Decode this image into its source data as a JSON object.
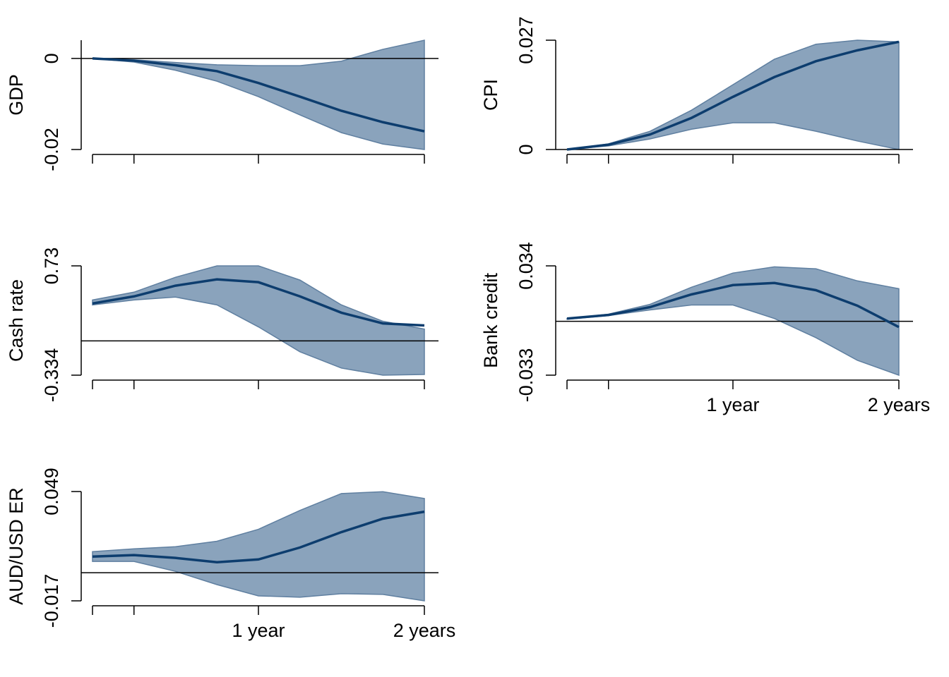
{
  "chart_data": [
    {
      "type": "line",
      "ylabel": "GDP",
      "x": [
        0,
        1,
        2,
        3,
        4,
        5,
        6,
        7,
        8
      ],
      "xlim": [
        0,
        8
      ],
      "xticks": [
        {
          "value": 0,
          "label": null
        },
        {
          "value": 1,
          "label": null
        },
        {
          "value": 4,
          "label": null
        },
        {
          "value": 8,
          "label": null
        }
      ],
      "ylim": [
        -0.02,
        0.004
      ],
      "yticks": [
        0,
        -0.02
      ],
      "hline": 0,
      "series": [
        {
          "color": "#0d3d6e",
          "band_color": "#8aa3bc",
          "band_edge": "#5f7fa0",
          "values": [
            0,
            -0.0005,
            -0.0015,
            -0.0028,
            -0.0054,
            -0.0084,
            -0.0115,
            -0.014,
            -0.016
          ],
          "lower": [
            0,
            -0.0008,
            -0.0026,
            -0.005,
            -0.0084,
            -0.0124,
            -0.0163,
            -0.0188,
            -0.02
          ],
          "upper": [
            0,
            -0.0003,
            -0.0009,
            -0.0014,
            -0.0016,
            -0.0016,
            -0.0006,
            0.002,
            0.004
          ]
        }
      ]
    },
    {
      "type": "line",
      "ylabel": "CPI",
      "x": [
        0,
        1,
        2,
        3,
        4,
        5,
        6,
        7,
        8
      ],
      "xlim": [
        0,
        8
      ],
      "xticks": [
        {
          "value": 0,
          "label": null
        },
        {
          "value": 1,
          "label": null
        },
        {
          "value": 4,
          "label": null
        },
        {
          "value": 8,
          "label": null
        }
      ],
      "ylim": [
        0,
        0.027
      ],
      "yticks": [
        0,
        0.027
      ],
      "hline": 0,
      "series": [
        {
          "color": "#0d3d6e",
          "band_color": "#8aa3bc",
          "band_edge": "#5f7fa0",
          "values": [
            0,
            0.0012,
            0.0037,
            0.0078,
            0.013,
            0.0179,
            0.0218,
            0.0245,
            0.0266
          ],
          "lower": [
            0,
            0.0009,
            0.0026,
            0.005,
            0.0066,
            0.0066,
            0.0045,
            0.0021,
            0
          ],
          "upper": [
            0,
            0.0014,
            0.0045,
            0.0097,
            0.016,
            0.0223,
            0.026,
            0.027,
            0.0266
          ]
        }
      ]
    },
    {
      "type": "line",
      "ylabel": "Cash rate",
      "x": [
        0,
        1,
        2,
        3,
        4,
        5,
        6,
        7,
        8
      ],
      "xlim": [
        0,
        8
      ],
      "xticks": [
        {
          "value": 0,
          "label": null
        },
        {
          "value": 1,
          "label": null
        },
        {
          "value": 4,
          "label": null
        },
        {
          "value": 8,
          "label": null
        }
      ],
      "ylim": [
        -0.334,
        0.73
      ],
      "yticks": [
        0.73,
        -0.334
      ],
      "hline": 0,
      "series": [
        {
          "color": "#0d3d6e",
          "band_color": "#8aa3bc",
          "band_edge": "#5f7fa0",
          "values": [
            0.364,
            0.433,
            0.537,
            0.599,
            0.571,
            0.433,
            0.274,
            0.17,
            0.15
          ],
          "lower": [
            0.35,
            0.398,
            0.426,
            0.35,
            0.136,
            -0.106,
            -0.265,
            -0.334,
            -0.327
          ],
          "upper": [
            0.398,
            0.474,
            0.619,
            0.73,
            0.73,
            0.592,
            0.35,
            0.191,
            0.115
          ]
        }
      ]
    },
    {
      "type": "line",
      "ylabel": "Bank credit",
      "x": [
        0,
        1,
        2,
        3,
        4,
        5,
        6,
        7,
        8
      ],
      "xlim": [
        0,
        8
      ],
      "xticks": [
        {
          "value": 0,
          "label": null
        },
        {
          "value": 1,
          "label": null
        },
        {
          "value": 4,
          "label": "1 year"
        },
        {
          "value": 8,
          "label": "2 years"
        }
      ],
      "ylim": [
        -0.033,
        0.034
      ],
      "yticks": [
        0.034,
        -0.033
      ],
      "hline": 0,
      "series": [
        {
          "color": "#0d3d6e",
          "band_color": "#8aa3bc",
          "band_edge": "#5f7fa0",
          "values": [
            0.0017,
            0.0039,
            0.0087,
            0.0165,
            0.0222,
            0.0235,
            0.0191,
            0.0096,
            -0.0035
          ],
          "lower": [
            0.0013,
            0.0035,
            0.007,
            0.01,
            0.01,
            0.0017,
            -0.01,
            -0.0239,
            -0.033
          ],
          "upper": [
            0.0017,
            0.0044,
            0.0104,
            0.0209,
            0.0296,
            0.0334,
            0.0322,
            0.0248,
            0.02
          ]
        }
      ]
    },
    {
      "type": "line",
      "ylabel": "AUD/USD ER",
      "x": [
        0,
        1,
        2,
        3,
        4,
        5,
        6,
        7,
        8
      ],
      "xlim": [
        0,
        8
      ],
      "xticks": [
        {
          "value": 0,
          "label": null
        },
        {
          "value": 1,
          "label": null
        },
        {
          "value": 4,
          "label": "1 year"
        },
        {
          "value": 8,
          "label": "2 years"
        }
      ],
      "ylim": [
        -0.017,
        0.049
      ],
      "yticks": [
        0.049,
        -0.017
      ],
      "hline": 0,
      "series": [
        {
          "color": "#0d3d6e",
          "band_color": "#8aa3bc",
          "band_edge": "#5f7fa0",
          "values": [
            0.0097,
            0.0106,
            0.0089,
            0.0063,
            0.008,
            0.0152,
            0.0245,
            0.0326,
            0.0368
          ],
          "lower": [
            0.0068,
            0.0068,
            0.0008,
            -0.0072,
            -0.014,
            -0.0148,
            -0.0127,
            -0.0131,
            -0.017
          ],
          "upper": [
            0.0127,
            0.0144,
            0.0157,
            0.019,
            0.0262,
            0.0376,
            0.0478,
            0.0489,
            0.0448
          ]
        }
      ]
    }
  ]
}
